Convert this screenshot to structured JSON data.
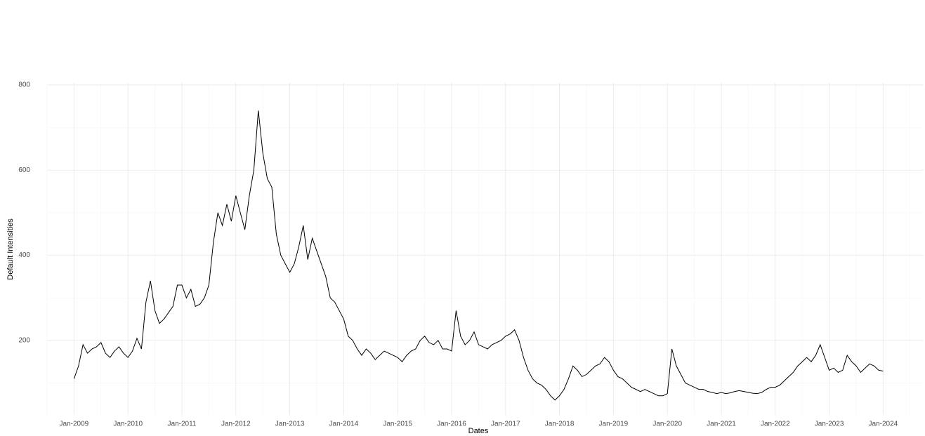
{
  "chart_data": {
    "type": "line",
    "y_label": "Default Intensities",
    "x_label": "Dates",
    "color": "#000000",
    "grid": true,
    "x": [
      "2009-01",
      "2009-02",
      "2009-03",
      "2009-04",
      "2009-05",
      "2009-06",
      "2009-07",
      "2009-08",
      "2009-09",
      "2009-10",
      "2009-11",
      "2009-12",
      "2010-01",
      "2010-02",
      "2010-03",
      "2010-04",
      "2010-05",
      "2010-06",
      "2010-07",
      "2010-08",
      "2010-09",
      "2010-10",
      "2010-11",
      "2010-12",
      "2011-01",
      "2011-02",
      "2011-03",
      "2011-04",
      "2011-05",
      "2011-06",
      "2011-07",
      "2011-08",
      "2011-09",
      "2011-10",
      "2011-11",
      "2011-12",
      "2012-01",
      "2012-02",
      "2012-03",
      "2012-04",
      "2012-05",
      "2012-06",
      "2012-07",
      "2012-08",
      "2012-09",
      "2012-10",
      "2012-11",
      "2012-12",
      "2013-01",
      "2013-02",
      "2013-03",
      "2013-04",
      "2013-05",
      "2013-06",
      "2013-07",
      "2013-08",
      "2013-09",
      "2013-10",
      "2013-11",
      "2013-12",
      "2014-01",
      "2014-02",
      "2014-03",
      "2014-04",
      "2014-05",
      "2014-06",
      "2014-07",
      "2014-08",
      "2014-09",
      "2014-10",
      "2014-11",
      "2014-12",
      "2015-01",
      "2015-02",
      "2015-03",
      "2015-04",
      "2015-05",
      "2015-06",
      "2015-07",
      "2015-08",
      "2015-09",
      "2015-10",
      "2015-11",
      "2015-12",
      "2016-01",
      "2016-02",
      "2016-03",
      "2016-04",
      "2016-05",
      "2016-06",
      "2016-07",
      "2016-08",
      "2016-09",
      "2016-10",
      "2016-11",
      "2016-12",
      "2017-01",
      "2017-02",
      "2017-03",
      "2017-04",
      "2017-05",
      "2017-06",
      "2017-07",
      "2017-08",
      "2017-09",
      "2017-10",
      "2017-11",
      "2017-12",
      "2018-01",
      "2018-02",
      "2018-03",
      "2018-04",
      "2018-05",
      "2018-06",
      "2018-07",
      "2018-08",
      "2018-09",
      "2018-10",
      "2018-11",
      "2018-12",
      "2019-01",
      "2019-02",
      "2019-03",
      "2019-04",
      "2019-05",
      "2019-06",
      "2019-07",
      "2019-08",
      "2019-09",
      "2019-10",
      "2019-11",
      "2019-12",
      "2020-01",
      "2020-02",
      "2020-03",
      "2020-04",
      "2020-05",
      "2020-06",
      "2020-07",
      "2020-08",
      "2020-09",
      "2020-10",
      "2020-11",
      "2020-12",
      "2021-01",
      "2021-02",
      "2021-03",
      "2021-04",
      "2021-05",
      "2021-06",
      "2021-07",
      "2021-08",
      "2021-09",
      "2021-10",
      "2021-11",
      "2021-12",
      "2022-01",
      "2022-02",
      "2022-03",
      "2022-04",
      "2022-05",
      "2022-06",
      "2022-07",
      "2022-08",
      "2022-09",
      "2022-10",
      "2022-11",
      "2022-12",
      "2023-01",
      "2023-02",
      "2023-03",
      "2023-04",
      "2023-05",
      "2023-06",
      "2023-07",
      "2023-08",
      "2023-09",
      "2023-10",
      "2023-11",
      "2023-12",
      "2024-01"
    ],
    "values": [
      110,
      140,
      190,
      170,
      180,
      185,
      195,
      170,
      160,
      175,
      185,
      170,
      160,
      175,
      205,
      180,
      290,
      340,
      270,
      240,
      250,
      265,
      280,
      330,
      330,
      300,
      320,
      280,
      285,
      300,
      330,
      430,
      500,
      470,
      520,
      480,
      540,
      500,
      460,
      540,
      600,
      740,
      640,
      580,
      560,
      450,
      400,
      380,
      360,
      380,
      420,
      470,
      390,
      440,
      410,
      380,
      350,
      300,
      290,
      270,
      250,
      210,
      200,
      180,
      165,
      180,
      170,
      155,
      165,
      175,
      170,
      165,
      160,
      150,
      165,
      175,
      180,
      200,
      210,
      195,
      190,
      200,
      180,
      180,
      175,
      270,
      210,
      190,
      200,
      220,
      190,
      185,
      180,
      190,
      195,
      200,
      210,
      215,
      225,
      200,
      160,
      130,
      110,
      100,
      95,
      85,
      70,
      60,
      70,
      85,
      110,
      140,
      130,
      115,
      120,
      130,
      140,
      145,
      160,
      150,
      130,
      115,
      110,
      100,
      90,
      85,
      80,
      85,
      80,
      75,
      70,
      70,
      75,
      180,
      140,
      120,
      100,
      95,
      90,
      85,
      85,
      80,
      78,
      75,
      78,
      75,
      77,
      80,
      82,
      80,
      78,
      76,
      75,
      78,
      85,
      90,
      90,
      95,
      105,
      115,
      125,
      140,
      150,
      160,
      150,
      165,
      190,
      160,
      130,
      135,
      125,
      130,
      165,
      150,
      140,
      125,
      135,
      145,
      140,
      130,
      128
    ],
    "xlim": [
      "2008-07",
      "2024-10"
    ],
    "xticks": [
      {
        "value": "2009-01",
        "label": "Jan-2009"
      },
      {
        "value": "2010-01",
        "label": "Jan-2010"
      },
      {
        "value": "2011-01",
        "label": "Jan-2011"
      },
      {
        "value": "2012-01",
        "label": "Jan-2012"
      },
      {
        "value": "2013-01",
        "label": "Jan-2013"
      },
      {
        "value": "2014-01",
        "label": "Jan-2014"
      },
      {
        "value": "2015-01",
        "label": "Jan-2015"
      },
      {
        "value": "2016-01",
        "label": "Jan-2016"
      },
      {
        "value": "2017-01",
        "label": "Jan-2017"
      },
      {
        "value": "2018-01",
        "label": "Jan-2018"
      },
      {
        "value": "2019-01",
        "label": "Jan-2019"
      },
      {
        "value": "2020-01",
        "label": "Jan-2020"
      },
      {
        "value": "2021-01",
        "label": "Jan-2021"
      },
      {
        "value": "2022-01",
        "label": "Jan-2022"
      },
      {
        "value": "2023-01",
        "label": "Jan-2023"
      },
      {
        "value": "2024-01",
        "label": "Jan-2024"
      }
    ],
    "x_minor_ticks": [
      "2008-07",
      "2009-07",
      "2010-07",
      "2011-07",
      "2012-07",
      "2013-07",
      "2014-07",
      "2015-07",
      "2016-07",
      "2017-07",
      "2018-07",
      "2019-07",
      "2020-07",
      "2021-07",
      "2022-07",
      "2023-07",
      "2024-07"
    ],
    "ylim": [
      25,
      805
    ],
    "yticks": [
      200,
      400,
      600,
      800
    ],
    "y_minor_ticks": [
      100,
      300,
      500,
      700
    ]
  }
}
